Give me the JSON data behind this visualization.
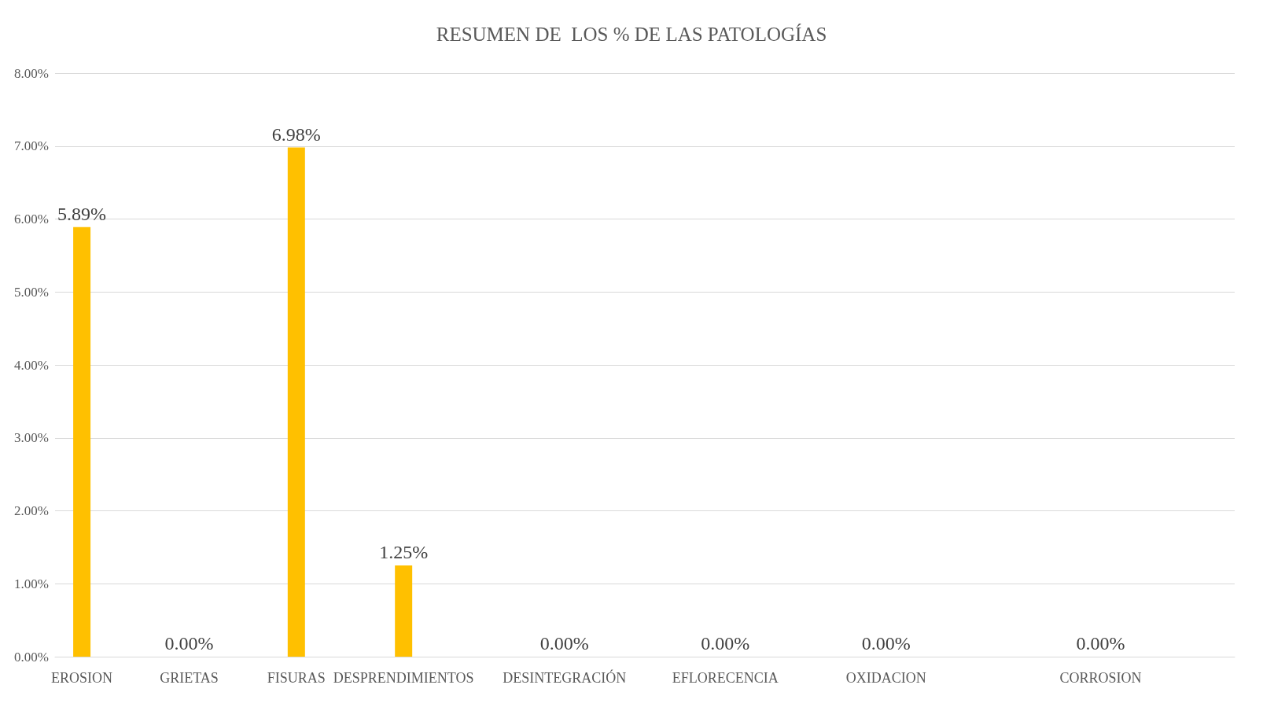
{
  "chart_data": {
    "type": "bar",
    "title": "RESUMEN DE  LOS % DE LAS PATOLOGÍAS",
    "categories": [
      "EROSION",
      null,
      "GRIETAS",
      null,
      "FISURAS",
      null,
      "DESPRENDIMIENTOS",
      null,
      null,
      "DESINTEGRACIÓN",
      null,
      null,
      "EFLORECENCIA",
      null,
      null,
      "OXIDACION",
      null,
      null,
      null,
      "CORROSION",
      null,
      null
    ],
    "values": [
      5.89,
      null,
      0,
      null,
      6.98,
      null,
      1.25,
      null,
      null,
      0,
      null,
      null,
      0,
      null,
      null,
      0,
      null,
      null,
      null,
      0,
      null,
      null
    ],
    "value_labels": [
      "5.89%",
      null,
      "0.00%",
      null,
      "6.98%",
      null,
      "1.25%",
      null,
      null,
      "0.00%",
      null,
      null,
      "0.00%",
      null,
      null,
      "0.00%",
      null,
      null,
      null,
      "0.00%",
      null,
      null
    ],
    "color": "#ffc000",
    "ylim": [
      0,
      8
    ],
    "yticks": [
      {
        "value": 0,
        "label": "0.00%"
      },
      {
        "value": 1,
        "label": "1.00%"
      },
      {
        "value": 2,
        "label": "2.00%"
      },
      {
        "value": 3,
        "label": "3.00%"
      },
      {
        "value": 4,
        "label": "4.00%"
      },
      {
        "value": 5,
        "label": "5.00%"
      },
      {
        "value": 6,
        "label": "6.00%"
      },
      {
        "value": 7,
        "label": "7.00%"
      },
      {
        "value": 8,
        "label": "8.00%"
      }
    ],
    "grid": "y"
  }
}
